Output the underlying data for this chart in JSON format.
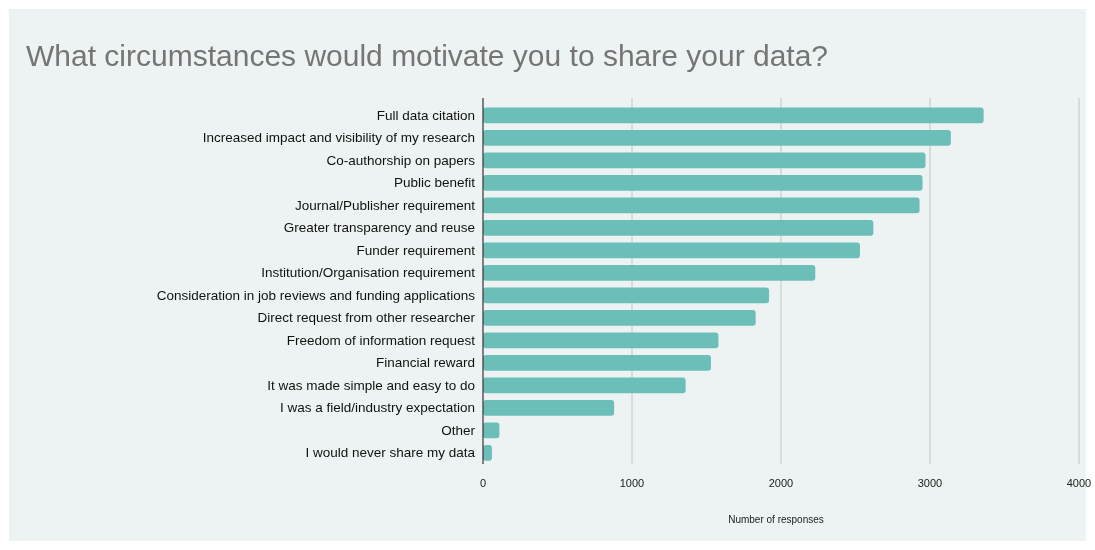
{
  "chart_data": {
    "type": "bar",
    "orientation": "horizontal",
    "title": "What circumstances would motivate you to share your data?",
    "xlabel": "Number of responses",
    "categories": [
      "Full data citation",
      "Increased impact and visibility of my research",
      "Co-authorship on papers",
      "Public benefit",
      "Journal/Publisher requirement",
      "Greater transparency and reuse",
      "Funder requirement",
      "Institution/Organisation requirement",
      "Consideration in job reviews and funding applications",
      "Direct request from other researcher",
      "Freedom of information request",
      "Financial reward",
      "It was made simple and easy to do",
      "I was a field/industry expectation",
      "Other",
      "I would never share my data"
    ],
    "values": [
      3360,
      3140,
      2970,
      2950,
      2930,
      2620,
      2530,
      2230,
      1920,
      1830,
      1580,
      1530,
      1360,
      880,
      110,
      60
    ],
    "color": "#6cbfb8",
    "xlim": [
      0,
      4000
    ],
    "xticks": [
      0,
      1000,
      2000,
      3000,
      4000
    ],
    "grid": "x"
  }
}
